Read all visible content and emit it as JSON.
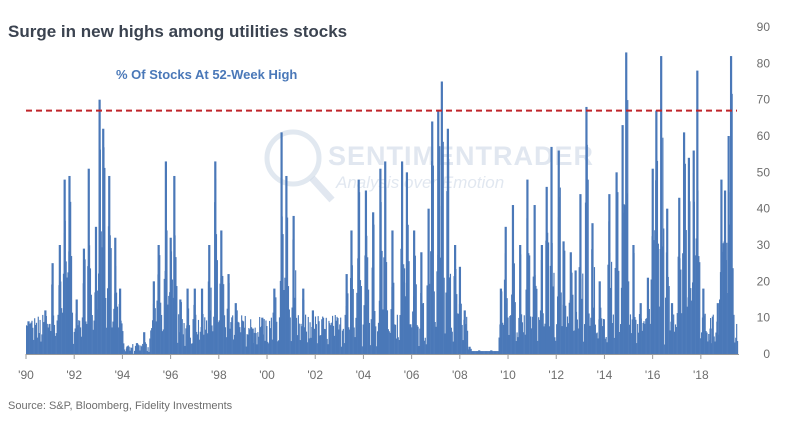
{
  "chart_data": {
    "type": "bar",
    "title": "Surge in new highs among utilities stocks",
    "series_label": "% Of Stocks At 52-Week High",
    "source": "Source: S&P, Bloomberg, Fidelity Investments",
    "watermark": {
      "line1": "SENTIMENTRADER",
      "line2": "Analysis over Emotion"
    },
    "xlabel": "",
    "ylabel": "",
    "x_range": [
      1990,
      2019.5
    ],
    "ylim": [
      0,
      90
    ],
    "y_ticks": [
      0,
      10,
      20,
      30,
      40,
      50,
      60,
      70,
      80,
      90
    ],
    "x_ticks": [
      {
        "year": 1990,
        "label": "'90"
      },
      {
        "year": 1992,
        "label": "'92"
      },
      {
        "year": 1994,
        "label": "'94"
      },
      {
        "year": 1996,
        "label": "'96"
      },
      {
        "year": 1998,
        "label": "'98"
      },
      {
        "year": 2000,
        "label": "'00"
      },
      {
        "year": 2002,
        "label": "'02"
      },
      {
        "year": 2004,
        "label": "'04"
      },
      {
        "year": 2006,
        "label": "'06"
      },
      {
        "year": 2008,
        "label": "'08"
      },
      {
        "year": 2010,
        "label": "'10"
      },
      {
        "year": 2012,
        "label": "'12"
      },
      {
        "year": 2014,
        "label": "'14"
      },
      {
        "year": 2016,
        "label": "'16"
      },
      {
        "year": 2018,
        "label": "'18"
      }
    ],
    "reference_line": {
      "value": 67,
      "style": "dashed",
      "color": "#c0252a"
    },
    "bar_color": "#4a78b8",
    "peaks": [
      {
        "year": 1990.1,
        "value": 9
      },
      {
        "year": 1990.4,
        "value": 8
      },
      {
        "year": 1990.8,
        "value": 12
      },
      {
        "year": 1991.1,
        "value": 25
      },
      {
        "year": 1991.4,
        "value": 30
      },
      {
        "year": 1991.6,
        "value": 48
      },
      {
        "year": 1991.8,
        "value": 49
      },
      {
        "year": 1992.1,
        "value": 15
      },
      {
        "year": 1992.4,
        "value": 29
      },
      {
        "year": 1992.6,
        "value": 51
      },
      {
        "year": 1992.9,
        "value": 35
      },
      {
        "year": 1993.05,
        "value": 70
      },
      {
        "year": 1993.2,
        "value": 62
      },
      {
        "year": 1993.45,
        "value": 49
      },
      {
        "year": 1993.7,
        "value": 32
      },
      {
        "year": 1993.9,
        "value": 18
      },
      {
        "year": 1994.2,
        "value": 2
      },
      {
        "year": 1994.6,
        "value": 3
      },
      {
        "year": 1994.9,
        "value": 6
      },
      {
        "year": 1995.3,
        "value": 20
      },
      {
        "year": 1995.5,
        "value": 30
      },
      {
        "year": 1995.8,
        "value": 53
      },
      {
        "year": 1996.0,
        "value": 32
      },
      {
        "year": 1996.15,
        "value": 49
      },
      {
        "year": 1996.4,
        "value": 15
      },
      {
        "year": 1996.7,
        "value": 18
      },
      {
        "year": 1997.0,
        "value": 18
      },
      {
        "year": 1997.3,
        "value": 18
      },
      {
        "year": 1997.6,
        "value": 30
      },
      {
        "year": 1997.85,
        "value": 53
      },
      {
        "year": 1998.1,
        "value": 34
      },
      {
        "year": 1998.4,
        "value": 22
      },
      {
        "year": 1998.7,
        "value": 14
      },
      {
        "year": 1999.0,
        "value": 9
      },
      {
        "year": 1999.4,
        "value": 7
      },
      {
        "year": 1999.8,
        "value": 10
      },
      {
        "year": 2000.3,
        "value": 18
      },
      {
        "year": 2000.6,
        "value": 61
      },
      {
        "year": 2000.8,
        "value": 49
      },
      {
        "year": 2001.1,
        "value": 38
      },
      {
        "year": 2001.5,
        "value": 18
      },
      {
        "year": 2001.9,
        "value": 12
      },
      {
        "year": 2002.3,
        "value": 8
      },
      {
        "year": 2002.8,
        "value": 5
      },
      {
        "year": 2003.3,
        "value": 22
      },
      {
        "year": 2003.5,
        "value": 34
      },
      {
        "year": 2003.8,
        "value": 48
      },
      {
        "year": 2004.1,
        "value": 45
      },
      {
        "year": 2004.4,
        "value": 39
      },
      {
        "year": 2004.7,
        "value": 51
      },
      {
        "year": 2004.9,
        "value": 53
      },
      {
        "year": 2005.2,
        "value": 34
      },
      {
        "year": 2005.6,
        "value": 53
      },
      {
        "year": 2005.8,
        "value": 50
      },
      {
        "year": 2006.1,
        "value": 34
      },
      {
        "year": 2006.4,
        "value": 28
      },
      {
        "year": 2006.7,
        "value": 40
      },
      {
        "year": 2006.85,
        "value": 64
      },
      {
        "year": 2007.1,
        "value": 67
      },
      {
        "year": 2007.25,
        "value": 75
      },
      {
        "year": 2007.5,
        "value": 62
      },
      {
        "year": 2007.8,
        "value": 30
      },
      {
        "year": 2008.0,
        "value": 24
      },
      {
        "year": 2008.2,
        "value": 12
      },
      {
        "year": 2008.4,
        "value": 2
      },
      {
        "year": 2008.8,
        "value": 1
      },
      {
        "year": 2009.3,
        "value": 1
      },
      {
        "year": 2009.7,
        "value": 18
      },
      {
        "year": 2009.9,
        "value": 35
      },
      {
        "year": 2010.2,
        "value": 41
      },
      {
        "year": 2010.5,
        "value": 30
      },
      {
        "year": 2010.8,
        "value": 48
      },
      {
        "year": 2011.1,
        "value": 41
      },
      {
        "year": 2011.4,
        "value": 30
      },
      {
        "year": 2011.6,
        "value": 46
      },
      {
        "year": 2011.8,
        "value": 57
      },
      {
        "year": 2012.1,
        "value": 56
      },
      {
        "year": 2012.3,
        "value": 31
      },
      {
        "year": 2012.6,
        "value": 28
      },
      {
        "year": 2012.8,
        "value": 23
      },
      {
        "year": 2013.0,
        "value": 44
      },
      {
        "year": 2013.25,
        "value": 68
      },
      {
        "year": 2013.5,
        "value": 36
      },
      {
        "year": 2013.8,
        "value": 20
      },
      {
        "year": 2014.2,
        "value": 44
      },
      {
        "year": 2014.5,
        "value": 50
      },
      {
        "year": 2014.75,
        "value": 63
      },
      {
        "year": 2014.9,
        "value": 83
      },
      {
        "year": 2015.2,
        "value": 30
      },
      {
        "year": 2015.5,
        "value": 14
      },
      {
        "year": 2015.8,
        "value": 21
      },
      {
        "year": 2016.0,
        "value": 51
      },
      {
        "year": 2016.15,
        "value": 67
      },
      {
        "year": 2016.35,
        "value": 82
      },
      {
        "year": 2016.6,
        "value": 40
      },
      {
        "year": 2016.8,
        "value": 14
      },
      {
        "year": 2017.1,
        "value": 43
      },
      {
        "year": 2017.3,
        "value": 61
      },
      {
        "year": 2017.5,
        "value": 54
      },
      {
        "year": 2017.7,
        "value": 56
      },
      {
        "year": 2017.85,
        "value": 78
      },
      {
        "year": 2018.1,
        "value": 18
      },
      {
        "year": 2018.4,
        "value": 7
      },
      {
        "year": 2018.7,
        "value": 14
      },
      {
        "year": 2018.85,
        "value": 48
      },
      {
        "year": 2019.0,
        "value": 45
      },
      {
        "year": 2019.15,
        "value": 60
      },
      {
        "year": 2019.25,
        "value": 82
      }
    ]
  }
}
